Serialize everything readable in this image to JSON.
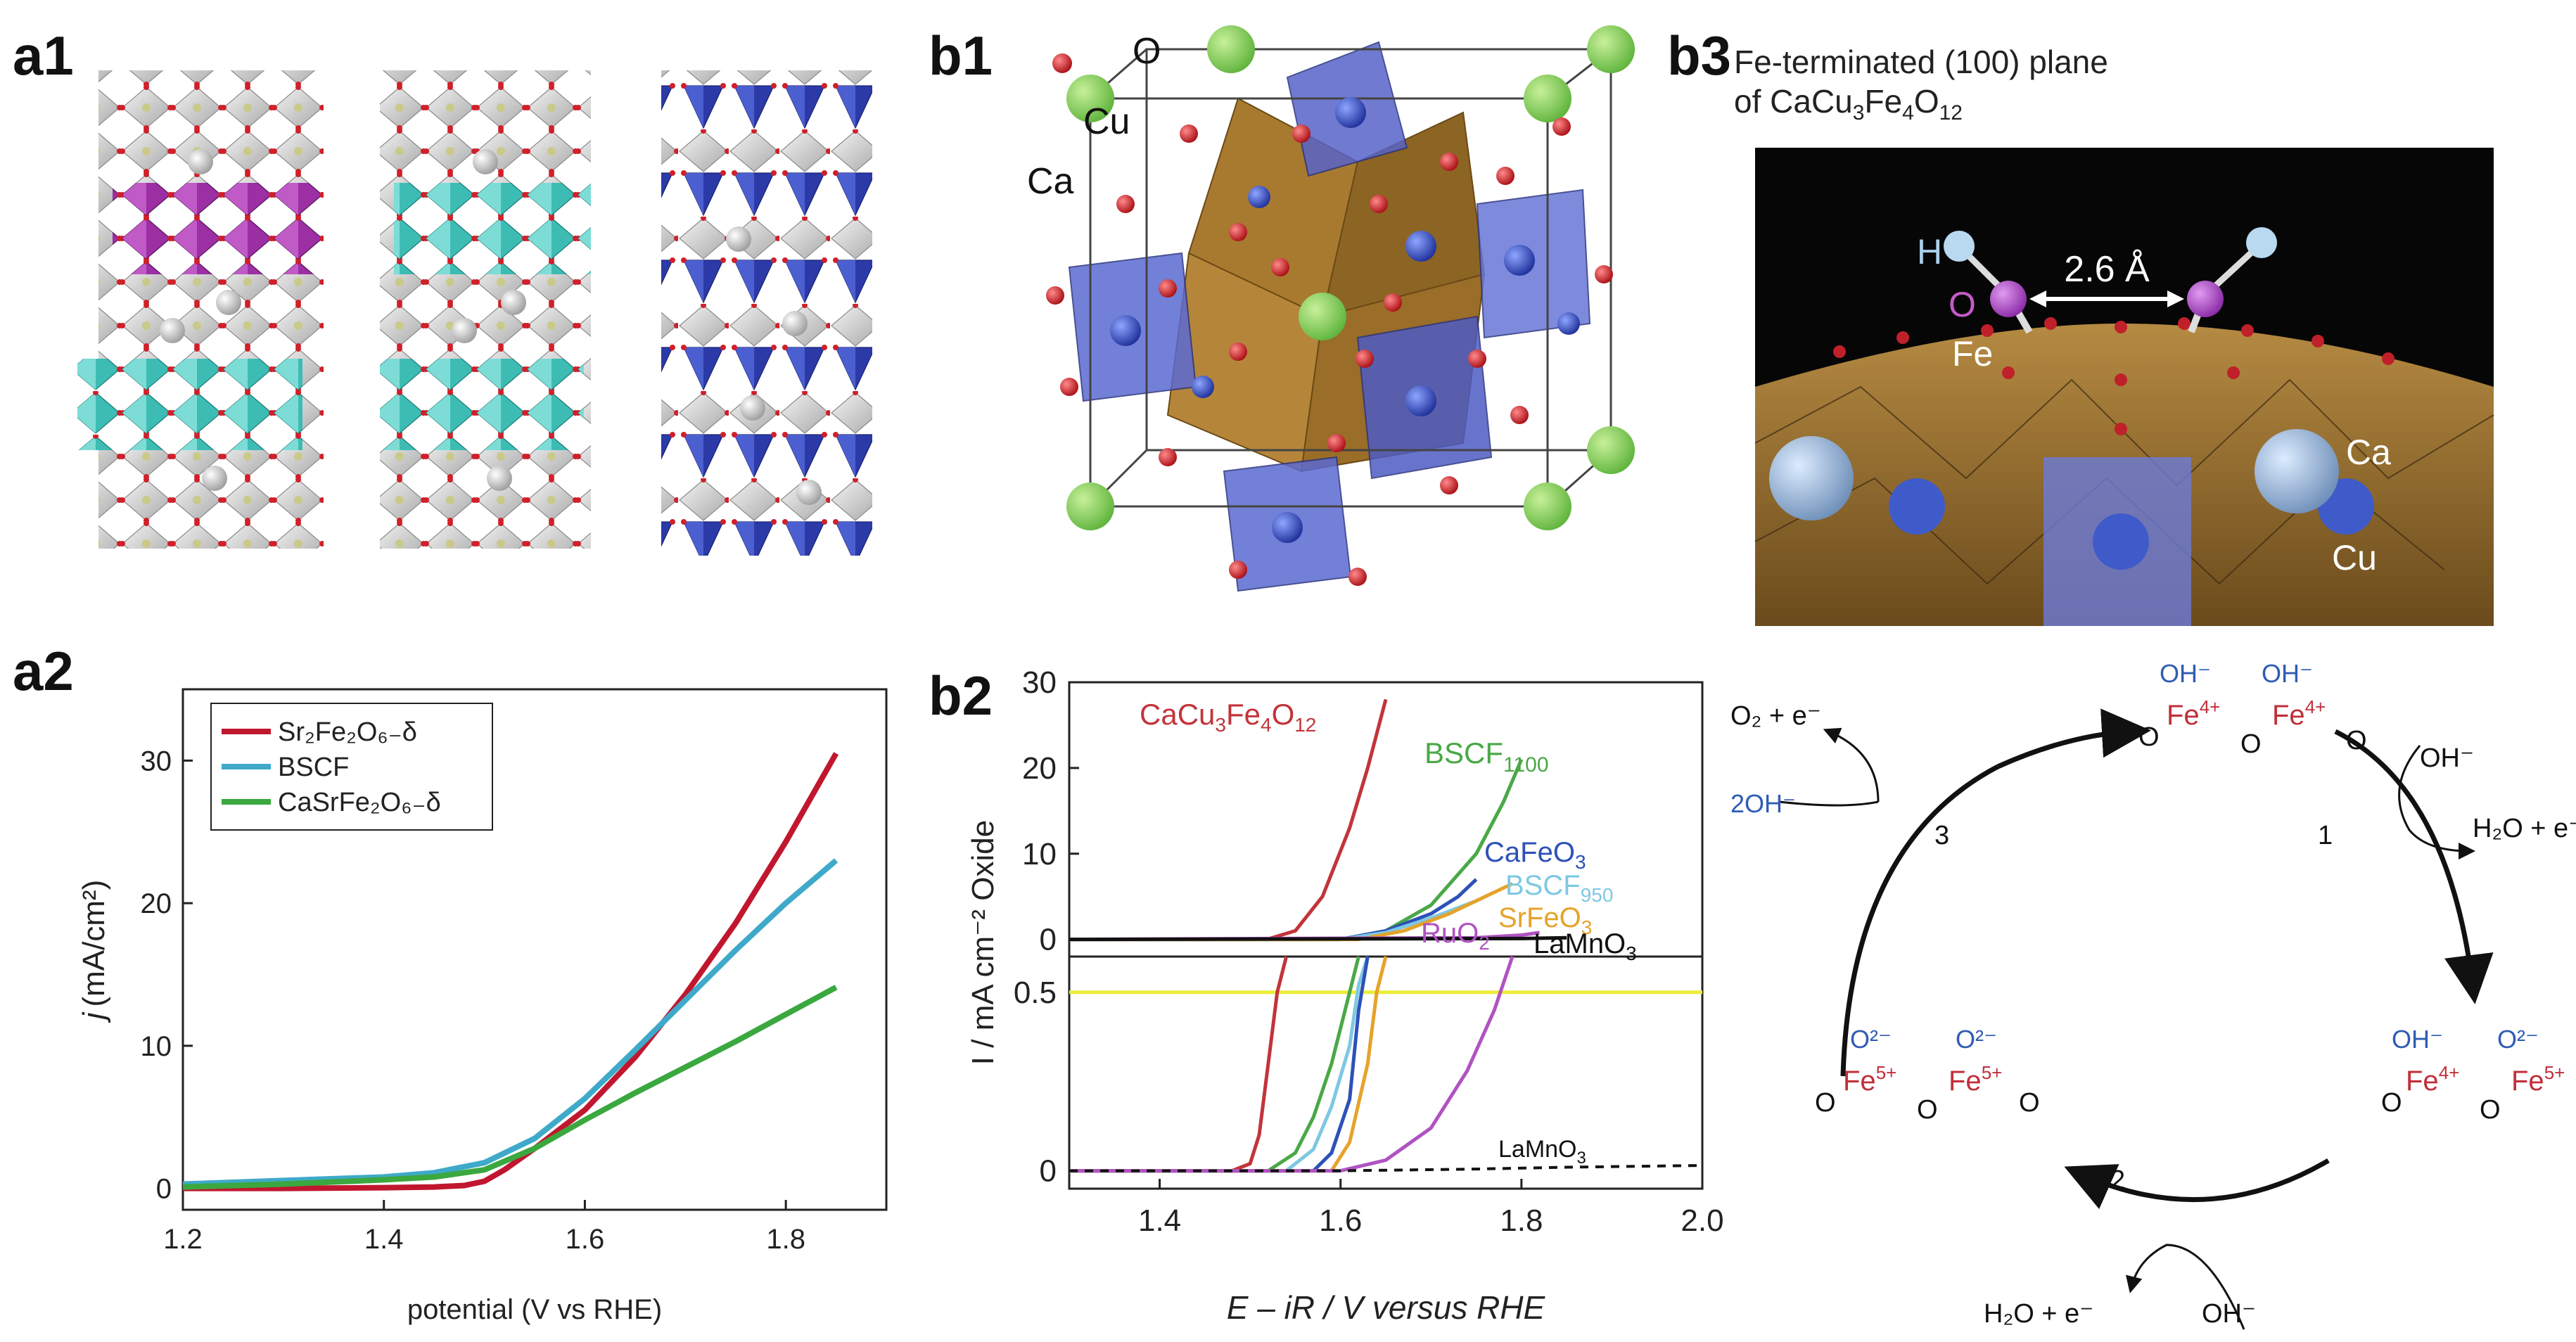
{
  "panels": {
    "a1": "a1",
    "a2": "a2",
    "b1": "b1",
    "b2": "b2",
    "b3": "b3"
  },
  "b1_labels": {
    "o": "O",
    "cu": "Cu",
    "ca": "Ca"
  },
  "b3": {
    "title_line1": "Fe-terminated (100) plane",
    "title_line2_pre": "of CaCu",
    "title_sub1": "3",
    "title_mid1": "Fe",
    "title_sub2": "4",
    "title_mid2": "O",
    "title_sub3": "12",
    "h": "H",
    "o": "O",
    "fe": "Fe",
    "ca": "Ca",
    "cu": "Cu",
    "distance": "2.6 Å"
  },
  "cycle": {
    "step1": "1",
    "step2": "2",
    "step3": "3",
    "oh_in": "OH⁻",
    "h2o_out": "H₂O + e⁻",
    "o2_out": "O₂ + e⁻",
    "two_oh_in": "2OH⁻",
    "bottom_h2o": "H₂O + e⁻",
    "bottom_oh": "OH⁻",
    "top_oh1": "OH⁻",
    "top_oh2": "OH⁻",
    "top_fe1": "Fe",
    "top_fe1_sup": "4+",
    "top_fe2": "Fe",
    "top_fe2_sup": "4+",
    "right_oh": "OH⁻",
    "right_o2": "O²⁻",
    "right_fe1": "Fe",
    "right_fe1_sup": "4+",
    "right_fe2": "Fe",
    "right_fe2_sup": "5+",
    "left_o1": "O²⁻",
    "left_o2": "O²⁻",
    "left_fe1": "Fe",
    "left_fe1_sup": "5+",
    "left_fe2": "Fe",
    "left_fe2_sup": "5+",
    "o_atom": "O"
  },
  "chart_data": [
    {
      "id": "a2",
      "type": "line",
      "xlabel": "potential (V vs RHE)",
      "ylabel_pre": "j",
      "ylabel": "(mA/cm²)",
      "xlim": [
        1.2,
        1.9
      ],
      "ylim": [
        -1.5,
        35
      ],
      "xticks": [
        1.2,
        1.4,
        1.6,
        1.8
      ],
      "xtick_labels": [
        "1.2",
        "1.4",
        "1.6",
        "1.8"
      ],
      "yticks": [
        0,
        10,
        20,
        30
      ],
      "ytick_labels": [
        "0",
        "10",
        "20",
        "30"
      ],
      "legend": [
        "Sr₂Fe₂O₆₋δ",
        "BSCF",
        "CaSrFe₂O₆₋δ"
      ],
      "series": [
        {
          "name": "Sr2Fe2O6-δ",
          "color": "#c0172f",
          "x": [
            1.2,
            1.3,
            1.4,
            1.45,
            1.48,
            1.5,
            1.52,
            1.55,
            1.6,
            1.65,
            1.7,
            1.75,
            1.8,
            1.85
          ],
          "y": [
            0,
            0,
            0.05,
            0.1,
            0.2,
            0.5,
            1.3,
            2.8,
            5.5,
            9.2,
            13.6,
            18.6,
            24.3,
            30.5
          ]
        },
        {
          "name": "BSCF",
          "color": "#3fa9c9",
          "x": [
            1.2,
            1.3,
            1.4,
            1.45,
            1.5,
            1.55,
            1.6,
            1.65,
            1.7,
            1.75,
            1.8,
            1.85
          ],
          "y": [
            0.3,
            0.55,
            0.8,
            1.1,
            1.8,
            3.5,
            6.3,
            9.7,
            13.2,
            16.7,
            20,
            23
          ]
        },
        {
          "name": "CaSrFe2O6-δ",
          "color": "#3aa83f",
          "x": [
            1.2,
            1.3,
            1.4,
            1.45,
            1.5,
            1.55,
            1.6,
            1.65,
            1.7,
            1.75,
            1.8,
            1.85
          ],
          "y": [
            0.1,
            0.3,
            0.6,
            0.8,
            1.3,
            2.8,
            4.8,
            6.7,
            8.5,
            10.3,
            12.2,
            14.1
          ]
        }
      ]
    },
    {
      "id": "b2",
      "type": "line",
      "xlabel": "E – iR / V versus RHE",
      "ylabel": "I / mA cm⁻² Oxide",
      "xlim": [
        1.3,
        2.0
      ],
      "xticks": [
        1.4,
        1.6,
        1.8,
        2.0
      ],
      "xtick_labels": [
        "1.4",
        "1.6",
        "1.8",
        "2.0"
      ],
      "top": {
        "ylim": [
          -2,
          30
        ],
        "yticks": [
          0,
          10,
          20,
          30
        ],
        "ytick_labels": [
          "0",
          "10",
          "20",
          "30"
        ],
        "series": [
          {
            "name": "CaCu3Fe4O12",
            "color": "#c2343a",
            "x": [
              1.3,
              1.5,
              1.52,
              1.55,
              1.58,
              1.61,
              1.63,
              1.65
            ],
            "y": [
              0,
              0,
              0.05,
              1.0,
              5,
              13,
              20,
              28
            ]
          },
          {
            "name": "BSCF1100",
            "color": "#4aa847",
            "x": [
              1.3,
              1.6,
              1.65,
              1.7,
              1.75,
              1.78,
              1.8
            ],
            "y": [
              0,
              0,
              1,
              4,
              10,
              16,
              21
            ]
          },
          {
            "name": "CaFeO3",
            "color": "#2d51b8",
            "x": [
              1.3,
              1.6,
              1.65,
              1.7,
              1.73,
              1.75
            ],
            "y": [
              0,
              0,
              1,
              3,
              5,
              7
            ]
          },
          {
            "name": "BSCF950",
            "color": "#7ec8e3",
            "x": [
              1.3,
              1.6,
              1.65,
              1.7,
              1.75,
              1.77
            ],
            "y": [
              0,
              0,
              0.8,
              2.5,
              4.5,
              5.5
            ]
          },
          {
            "name": "SrFeO3",
            "color": "#e6a32a",
            "x": [
              1.3,
              1.62,
              1.67,
              1.72,
              1.76,
              1.79
            ],
            "y": [
              0,
              0,
              1,
              3,
              5,
              6.5
            ]
          },
          {
            "name": "RuO2",
            "color": "#b053c2",
            "x": [
              1.3,
              1.75,
              1.8,
              1.82
            ],
            "y": [
              0,
              0.2,
              0.5,
              0.8
            ]
          },
          {
            "name": "LaMnO3",
            "color": "#111111",
            "x": [
              1.3,
              1.8,
              1.85
            ],
            "y": [
              0,
              0.1,
              0.2
            ]
          }
        ],
        "labels": [
          {
            "text": "CaCu",
            "sub1": "3",
            "mid": "Fe",
            "sub2": "4",
            "mid2": "O",
            "sub3": "12",
            "color": "#c2343a"
          },
          {
            "text": "BSCF",
            "sub": "1100",
            "color": "#4aa847"
          },
          {
            "text": "CaFeO",
            "sub": "3",
            "color": "#2d51b8"
          },
          {
            "text": "BSCF",
            "sub": "950",
            "color": "#7ec8e3"
          },
          {
            "text": "SrFeO",
            "sub": "3",
            "color": "#e6a32a"
          },
          {
            "text": "RuO",
            "sub": "2",
            "color": "#b053c2"
          },
          {
            "text": "LaMnO",
            "sub": "3",
            "color": "#111111"
          }
        ]
      },
      "bottom": {
        "ylim": [
          -0.05,
          0.6
        ],
        "yticks": [
          0,
          0.5
        ],
        "ytick_labels": [
          "0",
          "0.5"
        ],
        "hline": 0.5,
        "hline_color": "#ecec3a",
        "series": [
          {
            "name": "CaCu3Fe4O12",
            "color": "#c2343a",
            "x": [
              1.3,
              1.48,
              1.5,
              1.51,
              1.52,
              1.53,
              1.54
            ],
            "y": [
              0,
              0,
              0.02,
              0.1,
              0.3,
              0.5,
              0.6
            ]
          },
          {
            "name": "BSCF1100",
            "color": "#4aa847",
            "x": [
              1.3,
              1.52,
              1.55,
              1.57,
              1.59,
              1.61,
              1.62
            ],
            "y": [
              0,
              0,
              0.05,
              0.15,
              0.3,
              0.5,
              0.6
            ]
          },
          {
            "name": "BSCF950",
            "color": "#7ec8e3",
            "x": [
              1.3,
              1.54,
              1.57,
              1.59,
              1.61,
              1.62,
              1.63
            ],
            "y": [
              0,
              0,
              0.06,
              0.18,
              0.35,
              0.52,
              0.6
            ]
          },
          {
            "name": "CaFeO3",
            "color": "#2d51b8",
            "x": [
              1.3,
              1.57,
              1.59,
              1.61,
              1.62,
              1.63
            ],
            "y": [
              0,
              0,
              0.05,
              0.2,
              0.45,
              0.6
            ]
          },
          {
            "name": "SrFeO3",
            "color": "#e6a32a",
            "x": [
              1.3,
              1.59,
              1.61,
              1.63,
              1.64,
              1.65
            ],
            "y": [
              0,
              0,
              0.08,
              0.3,
              0.5,
              0.6
            ]
          },
          {
            "name": "RuO2",
            "color": "#b053c2",
            "x": [
              1.3,
              1.6,
              1.65,
              1.7,
              1.74,
              1.77,
              1.79
            ],
            "y": [
              0,
              0,
              0.03,
              0.12,
              0.28,
              0.45,
              0.6
            ]
          }
        ],
        "dashed": {
          "name": "LaMnO3",
          "color": "#111111",
          "x": [
            1.3,
            1.6,
            1.75,
            1.85,
            2.0
          ],
          "y": [
            0,
            0,
            0.005,
            0.01,
            0.015
          ]
        },
        "label": {
          "text": "LaMnO",
          "sub": "3"
        }
      }
    }
  ]
}
